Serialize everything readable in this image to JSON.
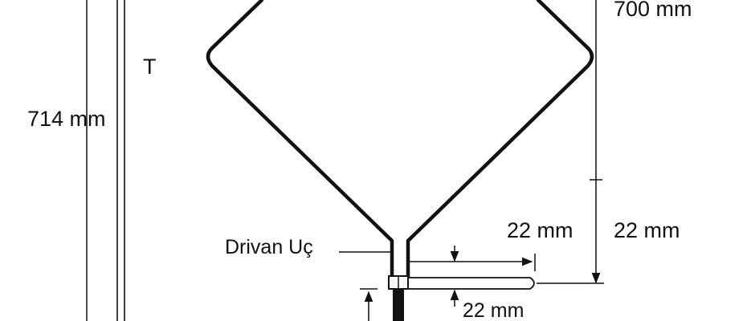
{
  "labels": {
    "height_total": "714 mm",
    "t_marker": "T",
    "top_right": "700 mm",
    "driven_end": "Drivan Uç",
    "gap_mid": "22 mm",
    "gap_right": "22 mm",
    "gap_bottom": "22 mm"
  },
  "colors": {
    "line": "#111111",
    "background": "#ffffff"
  }
}
